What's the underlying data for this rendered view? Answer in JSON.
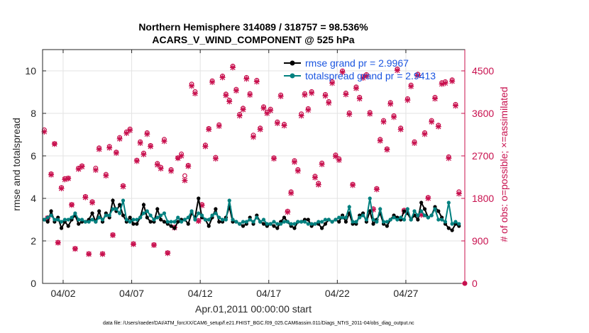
{
  "chart_data": {
    "type": "line",
    "title": "Northern Hemisphere 314089 / 318757 = 98.536%",
    "subtitle": "ACARS_V_WIND_COMPONENT @ 525 hPa",
    "xlabel": "Apr.01,2011 00:00:00 start",
    "ylabel": "rmse and totalspread",
    "y2label": "# of obs: o=possible; ×=assimilated",
    "x_unit": "day of April 2011",
    "xlim": [
      0.5,
      31.3
    ],
    "ylim": [
      0,
      11
    ],
    "y2lim": [
      0,
      4950
    ],
    "xticks": [
      2,
      7,
      12,
      17,
      22,
      27
    ],
    "xtick_labels": [
      "04/02",
      "04/07",
      "04/12",
      "04/17",
      "04/22",
      "04/27"
    ],
    "yticks": [
      0,
      2,
      4,
      6,
      8,
      10
    ],
    "ytick_labels": [
      "0",
      "2",
      "4",
      "6",
      "8",
      "10"
    ],
    "y2ticks": [
      0,
      900,
      1800,
      2700,
      3600,
      4500
    ],
    "y2tick_labels": [
      "0",
      "900",
      "1800",
      "2700",
      "3600",
      "4500"
    ],
    "grid": true,
    "legend_position": "top-right",
    "x": [
      0.625,
      0.875,
      1.125,
      1.375,
      1.625,
      1.875,
      2.125,
      2.375,
      2.625,
      2.875,
      3.125,
      3.375,
      3.625,
      3.875,
      4.125,
      4.375,
      4.625,
      4.875,
      5.125,
      5.375,
      5.625,
      5.875,
      6.125,
      6.375,
      6.625,
      6.875,
      7.125,
      7.375,
      7.625,
      7.875,
      8.125,
      8.375,
      8.625,
      8.875,
      9.125,
      9.375,
      9.625,
      9.875,
      10.125,
      10.375,
      10.625,
      10.875,
      11.125,
      11.375,
      11.625,
      11.875,
      12.125,
      12.375,
      12.625,
      12.875,
      13.125,
      13.375,
      13.625,
      13.875,
      14.125,
      14.375,
      14.625,
      14.875,
      15.125,
      15.375,
      15.625,
      15.875,
      16.125,
      16.375,
      16.625,
      16.875,
      17.125,
      17.375,
      17.625,
      17.875,
      18.125,
      18.375,
      18.625,
      18.875,
      19.125,
      19.375,
      19.625,
      19.875,
      20.125,
      20.375,
      20.625,
      20.875,
      21.125,
      21.375,
      21.625,
      21.875,
      22.125,
      22.375,
      22.625,
      22.875,
      23.125,
      23.375,
      23.625,
      23.875,
      24.125,
      24.375,
      24.625,
      24.875,
      25.125,
      25.375,
      25.625,
      25.875,
      26.125,
      26.375,
      26.625,
      26.875,
      27.125,
      27.375,
      27.625,
      27.875,
      28.125,
      28.375,
      28.625,
      28.875,
      29.125,
      29.375,
      29.625,
      29.875,
      30.125,
      30.375,
      30.625,
      30.875
    ],
    "series": [
      {
        "name": "rmse grand pr = 2.9967",
        "axis": "left",
        "color": "#000000",
        "marker": "dot",
        "values": [
          3.0,
          2.9,
          3.4,
          2.9,
          3.1,
          2.6,
          2.9,
          2.7,
          3.0,
          3.2,
          2.8,
          2.9,
          2.9,
          3.0,
          3.3,
          2.9,
          3.4,
          2.9,
          3.3,
          3.1,
          3.9,
          3.4,
          3.7,
          3.2,
          2.9,
          3.1,
          2.8,
          2.8,
          3.1,
          3.7,
          3.1,
          2.9,
          2.9,
          3.5,
          3.0,
          2.9,
          2.8,
          2.7,
          2.6,
          2.9,
          3.0,
          3.0,
          2.8,
          3.3,
          3.1,
          4.0,
          3.1,
          3.0,
          2.7,
          3.1,
          3.5,
          2.9,
          2.9,
          3.1,
          3.6,
          2.9,
          2.9,
          2.8,
          2.7,
          2.8,
          3.1,
          2.8,
          3.2,
          2.9,
          2.8,
          2.7,
          2.8,
          2.7,
          2.6,
          2.9,
          3.1,
          2.9,
          2.7,
          2.6,
          2.9,
          2.9,
          3.0,
          3.0,
          2.7,
          2.8,
          2.8,
          2.6,
          2.8,
          3.0,
          2.9,
          3.0,
          2.9,
          3.2,
          2.9,
          3.3,
          2.8,
          2.8,
          3.2,
          3.3,
          2.9,
          3.4,
          2.8,
          3.0,
          3.3,
          2.8,
          2.7,
          3.0,
          3.2,
          3.1,
          3.0,
          3.4,
          3.3,
          3.0,
          3.2,
          3.0,
          3.8,
          3.5,
          3.1,
          3.2,
          3.6,
          3.4,
          3.1,
          2.8,
          2.6,
          2.5,
          2.8,
          2.7
        ]
      },
      {
        "name": "totalspread grand pr = 2.9413",
        "axis": "left",
        "color": "#00807f",
        "marker": "dot",
        "values": [
          3.0,
          3.1,
          3.2,
          3.0,
          3.0,
          2.9,
          3.0,
          3.0,
          3.1,
          3.3,
          3.0,
          3.0,
          2.9,
          2.9,
          3.0,
          2.9,
          3.1,
          3.0,
          3.2,
          3.2,
          3.5,
          3.5,
          3.3,
          3.9,
          3.0,
          2.9,
          3.0,
          3.0,
          3.1,
          3.3,
          3.4,
          3.2,
          3.0,
          3.1,
          3.2,
          3.3,
          2.9,
          2.9,
          2.9,
          3.1,
          2.9,
          3.0,
          3.1,
          3.4,
          3.0,
          3.3,
          3.2,
          3.0,
          3.0,
          3.2,
          3.3,
          3.1,
          3.0,
          3.0,
          3.9,
          3.0,
          2.9,
          2.8,
          2.9,
          2.9,
          3.0,
          2.9,
          3.1,
          2.9,
          3.0,
          2.8,
          2.8,
          2.9,
          2.8,
          2.8,
          2.9,
          2.9,
          2.8,
          2.8,
          2.9,
          2.9,
          2.9,
          2.8,
          2.8,
          2.8,
          2.9,
          2.9,
          3.0,
          3.0,
          2.9,
          3.0,
          3.1,
          3.1,
          3.1,
          3.6,
          2.9,
          2.9,
          3.1,
          3.2,
          3.0,
          4.0,
          3.0,
          2.9,
          3.5,
          2.9,
          2.9,
          3.0,
          3.1,
          3.0,
          3.1,
          3.0,
          3.5,
          3.0,
          3.4,
          3.2,
          3.4,
          3.2,
          3.1,
          3.2,
          3.5,
          3.0,
          3.0,
          2.9,
          3.8,
          2.8,
          2.9,
          2.8
        ]
      },
      {
        "name": "# of obs possible",
        "axis": "right",
        "color": "#c8104e",
        "marker": "o",
        "values": [
          3250,
          1390,
          2320,
          2960,
          870,
          2030,
          2220,
          2230,
          1670,
          740,
          2440,
          2490,
          1840,
          630,
          1730,
          2440,
          2870,
          630,
          2310,
          2900,
          1030,
          2780,
          3090,
          2070,
          3210,
          3270,
          840,
          2610,
          3000,
          2760,
          3190,
          2920,
          820,
          2540,
          2460,
          3050,
          650,
          2410,
          1190,
          2660,
          2740,
          2280,
          2500,
          4220,
          4060,
          1330,
          1670,
          2930,
          3280,
          4290,
          2670,
          3360,
          4390,
          4010,
          3880,
          4600,
          4110,
          3580,
          3710,
          4360,
          4020,
          3140,
          4300,
          3290,
          3740,
          3630,
          3690,
          2660,
          3420,
          3990,
          3370,
          1530,
          1940,
          2600,
          2410,
          3590,
          4020,
          3700,
          4060,
          2270,
          2120,
          2550,
          4000,
          3850,
          4270,
          2720,
          2640,
          4500,
          4030,
          3610,
          2100,
          4160,
          3940,
          4380,
          4420,
          3620,
          1580,
          2010,
          3050,
          3450,
          2850,
          3830,
          3550,
          4540,
          3290,
          1550,
          3910,
          4200,
          3000,
          4430,
          1470,
          3190,
          1820,
          3450,
          3940,
          3350,
          4250,
          4270,
          2680,
          4310,
          3790,
          1940
        ]
      },
      {
        "name": "# of obs assimilated",
        "axis": "right",
        "color": "#c8104e",
        "marker": "x",
        "values": [
          3210,
          1380,
          2300,
          2950,
          860,
          2010,
          2200,
          2220,
          1660,
          730,
          2420,
          2470,
          1820,
          620,
          1710,
          2400,
          2840,
          620,
          2280,
          2870,
          1020,
          2760,
          3060,
          2050,
          3180,
          3240,
          830,
          2590,
          2970,
          2730,
          3160,
          2900,
          810,
          2510,
          2430,
          3010,
          640,
          2380,
          1180,
          2650,
          2700,
          2180,
          2480,
          4180,
          4020,
          1320,
          1650,
          2900,
          3260,
          4260,
          2640,
          3330,
          4360,
          3980,
          3850,
          4570,
          4080,
          3550,
          3680,
          4330,
          3990,
          3100,
          4270,
          3260,
          3710,
          3600,
          3660,
          2640,
          3390,
          3960,
          3340,
          1510,
          1910,
          2570,
          2380,
          3550,
          3990,
          3670,
          4030,
          2240,
          2090,
          2520,
          3970,
          3820,
          4240,
          2690,
          2610,
          4470,
          4000,
          3580,
          2080,
          4130,
          3910,
          4350,
          4390,
          3590,
          1560,
          1990,
          3020,
          3420,
          2830,
          3800,
          3520,
          4510,
          3260,
          1530,
          3880,
          4170,
          2970,
          4400,
          1450,
          3160,
          1800,
          3420,
          3910,
          3320,
          4220,
          4240,
          2650,
          4280,
          3760,
          1900
        ]
      }
    ]
  },
  "footer": "data file: /Users/raeder/DAI/ATM_forcXX/CAM6_setup/f.e21.FHIST_BGC.f09_025.CAM6assim.011/Diags_NTrS_2011-04/obs_diag_output.nc"
}
